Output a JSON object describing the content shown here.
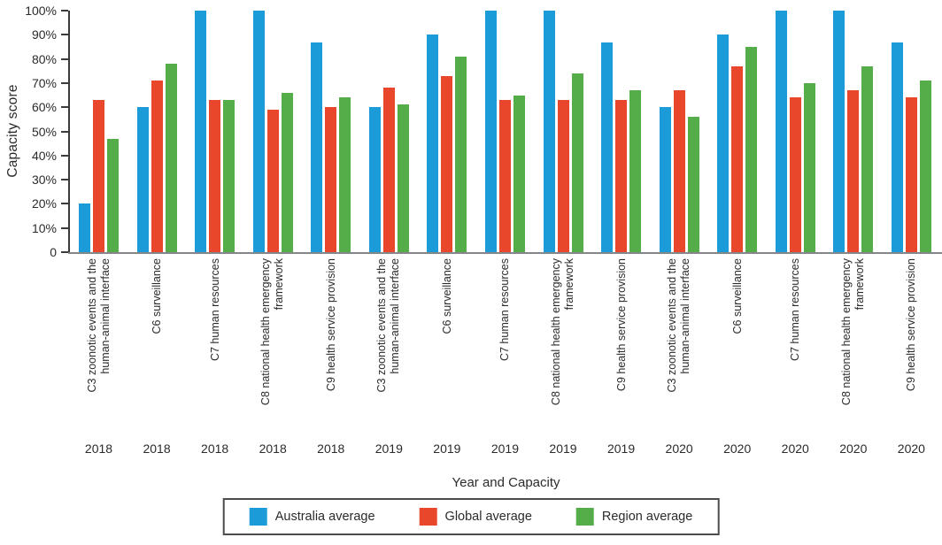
{
  "chart_data": {
    "type": "bar",
    "title": "",
    "xlabel": "Year and Capacity",
    "ylabel": "Capacity score",
    "ylim": [
      0,
      100
    ],
    "grid": false,
    "legend_position": "bottom",
    "y_ticks": [
      "100%",
      "90%",
      "80%",
      "70%",
      "60%",
      "50%",
      "40%",
      "30%",
      "20%",
      "10%",
      "0"
    ],
    "categories": [
      {
        "capacity_lines": [
          "C3 zoonotic events and the",
          "human-animal interface"
        ],
        "year": "2018"
      },
      {
        "capacity_lines": [
          "C6 surveillance"
        ],
        "year": "2018"
      },
      {
        "capacity_lines": [
          "C7 human resources"
        ],
        "year": "2018"
      },
      {
        "capacity_lines": [
          "C8 national health emergency",
          "framework"
        ],
        "year": "2018"
      },
      {
        "capacity_lines": [
          "C9 health service provision"
        ],
        "year": "2018"
      },
      {
        "capacity_lines": [
          "C3 zoonotic events and the",
          "human-animal interface"
        ],
        "year": "2019"
      },
      {
        "capacity_lines": [
          "C6 surveillance"
        ],
        "year": "2019"
      },
      {
        "capacity_lines": [
          "C7 human resources"
        ],
        "year": "2019"
      },
      {
        "capacity_lines": [
          "C8 national health emergency",
          "framework"
        ],
        "year": "2019"
      },
      {
        "capacity_lines": [
          "C9 health service provision"
        ],
        "year": "2019"
      },
      {
        "capacity_lines": [
          "C3 zoonotic events and the",
          "human-animal interface"
        ],
        "year": "2020"
      },
      {
        "capacity_lines": [
          "C6 surveillance"
        ],
        "year": "2020"
      },
      {
        "capacity_lines": [
          "C7 human resources"
        ],
        "year": "2020"
      },
      {
        "capacity_lines": [
          "C8 national health emergency",
          "framework"
        ],
        "year": "2020"
      },
      {
        "capacity_lines": [
          "C9 health service provision"
        ],
        "year": "2020"
      }
    ],
    "series": [
      {
        "name": "Australia average",
        "color": "#1b9cd9",
        "values": [
          20,
          60,
          100,
          100,
          87,
          60,
          90,
          100,
          100,
          87,
          60,
          90,
          100,
          100,
          87
        ]
      },
      {
        "name": "Global average",
        "color": "#e8472c",
        "values": [
          63,
          71,
          63,
          59,
          60,
          68,
          73,
          63,
          63,
          63,
          67,
          77,
          64,
          67,
          64
        ]
      },
      {
        "name": "Region average",
        "color": "#55ad4a",
        "values": [
          47,
          78,
          63,
          66,
          64,
          61,
          81,
          65,
          74,
          67,
          56,
          85,
          70,
          77,
          71
        ]
      }
    ]
  }
}
